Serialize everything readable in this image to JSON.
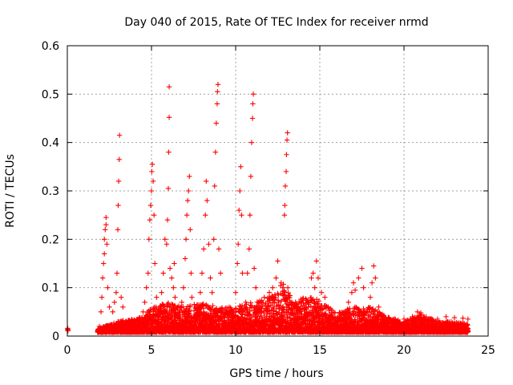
{
  "chart_data": {
    "type": "scatter",
    "title": "Day 040 of 2015, Rate Of TEC Index for receiver nrmd",
    "xlabel": "GPS time / hours",
    "ylabel": "ROTI / TECUs",
    "xlim": [
      0,
      25
    ],
    "ylim": [
      0,
      0.6
    ],
    "x_ticks": [
      "0",
      "5",
      "10",
      "15",
      "20",
      "25"
    ],
    "y_ticks": [
      "0",
      "0.1",
      "0.2",
      "0.3",
      "0.4",
      "0.5",
      "0.6"
    ],
    "grid": true,
    "marker": "plus",
    "color": "#ff0000",
    "series": [
      {
        "points": [
          [
            0.02,
            0.016
          ],
          [
            0.02,
            0.012
          ],
          [
            0.03,
            0.014
          ],
          [
            0.04,
            0.011
          ],
          [
            1.9,
            0.02
          ],
          [
            2.0,
            0.05
          ],
          [
            2.05,
            0.08
          ],
          [
            2.1,
            0.12
          ],
          [
            2.15,
            0.15
          ],
          [
            2.2,
            0.17
          ],
          [
            2.2,
            0.2
          ],
          [
            2.25,
            0.22
          ],
          [
            2.3,
            0.245
          ],
          [
            2.3,
            0.23
          ],
          [
            2.35,
            0.19
          ],
          [
            2.4,
            0.1
          ],
          [
            2.5,
            0.06
          ],
          [
            2.7,
            0.05
          ],
          [
            2.8,
            0.07
          ],
          [
            2.9,
            0.09
          ],
          [
            2.95,
            0.13
          ],
          [
            3.0,
            0.22
          ],
          [
            3.02,
            0.27
          ],
          [
            3.05,
            0.32
          ],
          [
            3.08,
            0.365
          ],
          [
            3.1,
            0.415
          ],
          [
            3.2,
            0.08
          ],
          [
            3.3,
            0.06
          ],
          [
            4.5,
            0.05
          ],
          [
            4.6,
            0.07
          ],
          [
            4.7,
            0.1
          ],
          [
            4.8,
            0.13
          ],
          [
            4.85,
            0.2
          ],
          [
            4.9,
            0.24
          ],
          [
            4.95,
            0.27
          ],
          [
            5.0,
            0.3
          ],
          [
            5.02,
            0.34
          ],
          [
            5.05,
            0.355
          ],
          [
            5.1,
            0.32
          ],
          [
            5.15,
            0.25
          ],
          [
            5.2,
            0.15
          ],
          [
            5.3,
            0.08
          ],
          [
            5.5,
            0.06
          ],
          [
            5.6,
            0.09
          ],
          [
            5.7,
            0.13
          ],
          [
            5.8,
            0.2
          ],
          [
            5.9,
            0.19
          ],
          [
            5.95,
            0.24
          ],
          [
            6.0,
            0.305
          ],
          [
            6.02,
            0.38
          ],
          [
            6.05,
            0.452
          ],
          [
            6.05,
            0.515
          ],
          [
            6.1,
            0.14
          ],
          [
            6.2,
            0.12
          ],
          [
            6.3,
            0.1
          ],
          [
            6.35,
            0.15
          ],
          [
            6.4,
            0.08
          ],
          [
            6.7,
            0.05
          ],
          [
            6.8,
            0.07
          ],
          [
            6.9,
            0.1
          ],
          [
            7.0,
            0.16
          ],
          [
            7.05,
            0.2
          ],
          [
            7.1,
            0.25
          ],
          [
            7.15,
            0.28
          ],
          [
            7.2,
            0.3
          ],
          [
            7.25,
            0.33
          ],
          [
            7.3,
            0.22
          ],
          [
            7.35,
            0.13
          ],
          [
            7.4,
            0.08
          ],
          [
            7.8,
            0.06
          ],
          [
            7.9,
            0.09
          ],
          [
            8.0,
            0.13
          ],
          [
            8.1,
            0.18
          ],
          [
            8.2,
            0.25
          ],
          [
            8.25,
            0.32
          ],
          [
            8.3,
            0.28
          ],
          [
            8.4,
            0.19
          ],
          [
            8.5,
            0.12
          ],
          [
            8.6,
            0.09
          ],
          [
            8.7,
            0.2
          ],
          [
            8.75,
            0.31
          ],
          [
            8.8,
            0.38
          ],
          [
            8.85,
            0.44
          ],
          [
            8.9,
            0.48
          ],
          [
            8.92,
            0.505
          ],
          [
            8.95,
            0.52
          ],
          [
            9.0,
            0.18
          ],
          [
            9.1,
            0.13
          ],
          [
            9.9,
            0.05
          ],
          [
            10.0,
            0.09
          ],
          [
            10.1,
            0.15
          ],
          [
            10.15,
            0.19
          ],
          [
            10.2,
            0.26
          ],
          [
            10.25,
            0.3
          ],
          [
            10.3,
            0.35
          ],
          [
            10.35,
            0.25
          ],
          [
            10.4,
            0.13
          ],
          [
            10.6,
            0.07
          ],
          [
            10.7,
            0.13
          ],
          [
            10.8,
            0.18
          ],
          [
            10.85,
            0.25
          ],
          [
            10.9,
            0.33
          ],
          [
            10.95,
            0.4
          ],
          [
            11.0,
            0.45
          ],
          [
            11.02,
            0.48
          ],
          [
            11.05,
            0.5
          ],
          [
            11.1,
            0.14
          ],
          [
            11.2,
            0.1
          ],
          [
            11.5,
            0.06
          ],
          [
            11.7,
            0.08
          ],
          [
            12.0,
            0.09
          ],
          [
            12.2,
            0.1
          ],
          [
            12.4,
            0.12
          ],
          [
            12.5,
            0.155
          ],
          [
            12.7,
            0.11
          ],
          [
            12.8,
            0.1
          ],
          [
            12.9,
            0.25
          ],
          [
            12.92,
            0.27
          ],
          [
            12.95,
            0.31
          ],
          [
            13.0,
            0.34
          ],
          [
            13.02,
            0.375
          ],
          [
            13.05,
            0.405
          ],
          [
            13.08,
            0.42
          ],
          [
            13.1,
            0.1
          ],
          [
            13.3,
            0.07
          ],
          [
            14.3,
            0.07
          ],
          [
            14.5,
            0.12
          ],
          [
            14.6,
            0.13
          ],
          [
            14.7,
            0.1
          ],
          [
            14.8,
            0.155
          ],
          [
            14.9,
            0.12
          ],
          [
            15.1,
            0.09
          ],
          [
            15.3,
            0.08
          ],
          [
            15.5,
            0.06
          ],
          [
            16.5,
            0.05
          ],
          [
            16.7,
            0.07
          ],
          [
            16.9,
            0.09
          ],
          [
            17.0,
            0.11
          ],
          [
            17.1,
            0.095
          ],
          [
            17.3,
            0.12
          ],
          [
            17.5,
            0.14
          ],
          [
            17.6,
            0.1
          ],
          [
            18.0,
            0.08
          ],
          [
            18.1,
            0.11
          ],
          [
            18.2,
            0.145
          ],
          [
            18.3,
            0.12
          ],
          [
            18.5,
            0.06
          ],
          [
            18.8,
            0.04
          ],
          [
            19.5,
            0.03
          ],
          [
            20.0,
            0.035
          ],
          [
            20.5,
            0.04
          ],
          [
            20.8,
            0.05
          ],
          [
            21.0,
            0.048
          ],
          [
            21.2,
            0.03
          ],
          [
            22.0,
            0.035
          ],
          [
            22.5,
            0.04
          ],
          [
            23.0,
            0.038
          ],
          [
            23.5,
            0.037
          ],
          [
            23.8,
            0.035
          ]
        ],
        "dense_band": {
          "x_range": [
            1.8,
            23.8
          ],
          "y_base": 0.008,
          "envelope": [
            [
              1.8,
              0.015
            ],
            [
              3.0,
              0.03
            ],
            [
              4.5,
              0.04
            ],
            [
              5.0,
              0.06
            ],
            [
              6.0,
              0.07
            ],
            [
              7.0,
              0.06
            ],
            [
              8.0,
              0.07
            ],
            [
              9.0,
              0.06
            ],
            [
              10.0,
              0.06
            ],
            [
              11.0,
              0.07
            ],
            [
              12.0,
              0.08
            ],
            [
              12.8,
              0.11
            ],
            [
              13.5,
              0.07
            ],
            [
              14.5,
              0.09
            ],
            [
              15.0,
              0.07
            ],
            [
              16.0,
              0.05
            ],
            [
              17.0,
              0.06
            ],
            [
              18.0,
              0.06
            ],
            [
              19.0,
              0.04
            ],
            [
              20.0,
              0.03
            ],
            [
              21.0,
              0.045
            ],
            [
              22.0,
              0.03
            ],
            [
              23.0,
              0.03
            ],
            [
              23.8,
              0.025
            ]
          ]
        }
      }
    ]
  }
}
